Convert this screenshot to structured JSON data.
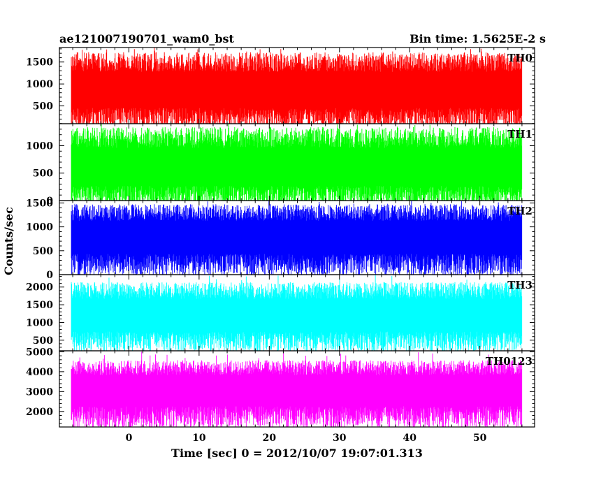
{
  "header": {
    "left_title": "ae121007190701_wam0_bst",
    "right_title": "Bin time: 1.5625E-2 s"
  },
  "ylabel": "Counts/sec",
  "xlabel": "Time [sec] 0 = 2012/10/07 19:07:01.313",
  "chart_data": {
    "type": "line",
    "title": "ae121007190701_wam0_bst",
    "subtitle": "Bin time: 1.5625E-2 s",
    "xlabel": "Time [sec] 0 = 2012/10/07 19:07:01.313",
    "ylabel": "Counts/sec",
    "xlim": [
      -9.9,
      57.8
    ],
    "x_start": -8.2,
    "x_end": 56.0,
    "x_ticks": [
      0,
      10,
      20,
      30,
      40,
      50
    ],
    "x_tick_labels": [
      "0",
      "10",
      "20",
      "30",
      "40",
      "50"
    ],
    "x_minor_step": 2,
    "grid": false,
    "legend": "none",
    "panels": [
      {
        "name": "TH0",
        "color": "#ff0000",
        "ylim": [
          95,
          1830
        ],
        "y_ticks": [
          500,
          1000,
          1500
        ],
        "y_tick_labels": [
          "500",
          "1000",
          "1500"
        ],
        "y_minor_step": 100,
        "mean": 760,
        "low_env": 200,
        "high_env": 1500,
        "min": 90,
        "max": 1830
      },
      {
        "name": "TH1",
        "color": "#00ff00",
        "ylim": [
          0,
          1400
        ],
        "y_ticks": [
          0,
          500,
          1000
        ],
        "y_tick_labels": [
          "0",
          "500",
          "1000"
        ],
        "y_minor_step": 100,
        "mean": 520,
        "low_env": 60,
        "high_env": 1150,
        "min": 0,
        "max": 1400
      },
      {
        "name": "TH2",
        "color": "#0000ff",
        "ylim": [
          0,
          1550
        ],
        "y_ticks": [
          0,
          500,
          1000,
          1500
        ],
        "y_tick_labels": [
          "0",
          "500",
          "1000",
          "1500"
        ],
        "y_minor_step": 100,
        "mean": 720,
        "low_env": 200,
        "high_env": 1300,
        "min": 0,
        "max": 1550
      },
      {
        "name": "TH3",
        "color": "#00ffff",
        "ylim": [
          200,
          2350
        ],
        "y_ticks": [
          500,
          1000,
          1500,
          2000
        ],
        "y_tick_labels": [
          "500",
          "1000",
          "1500",
          "2000"
        ],
        "y_minor_step": 100,
        "mean": 1100,
        "low_env": 450,
        "high_env": 1900,
        "min": 200,
        "max": 2350
      },
      {
        "name": "TH0123",
        "color": "#ff00ff",
        "ylim": [
          1220,
          5050
        ],
        "y_ticks": [
          2000,
          3000,
          4000,
          5000
        ],
        "y_tick_labels": [
          "2000",
          "3000",
          "4000",
          "5000"
        ],
        "y_minor_step": 200,
        "mean": 2950,
        "low_env": 1700,
        "high_env": 4200,
        "min": 1220,
        "max": 5050
      }
    ]
  }
}
